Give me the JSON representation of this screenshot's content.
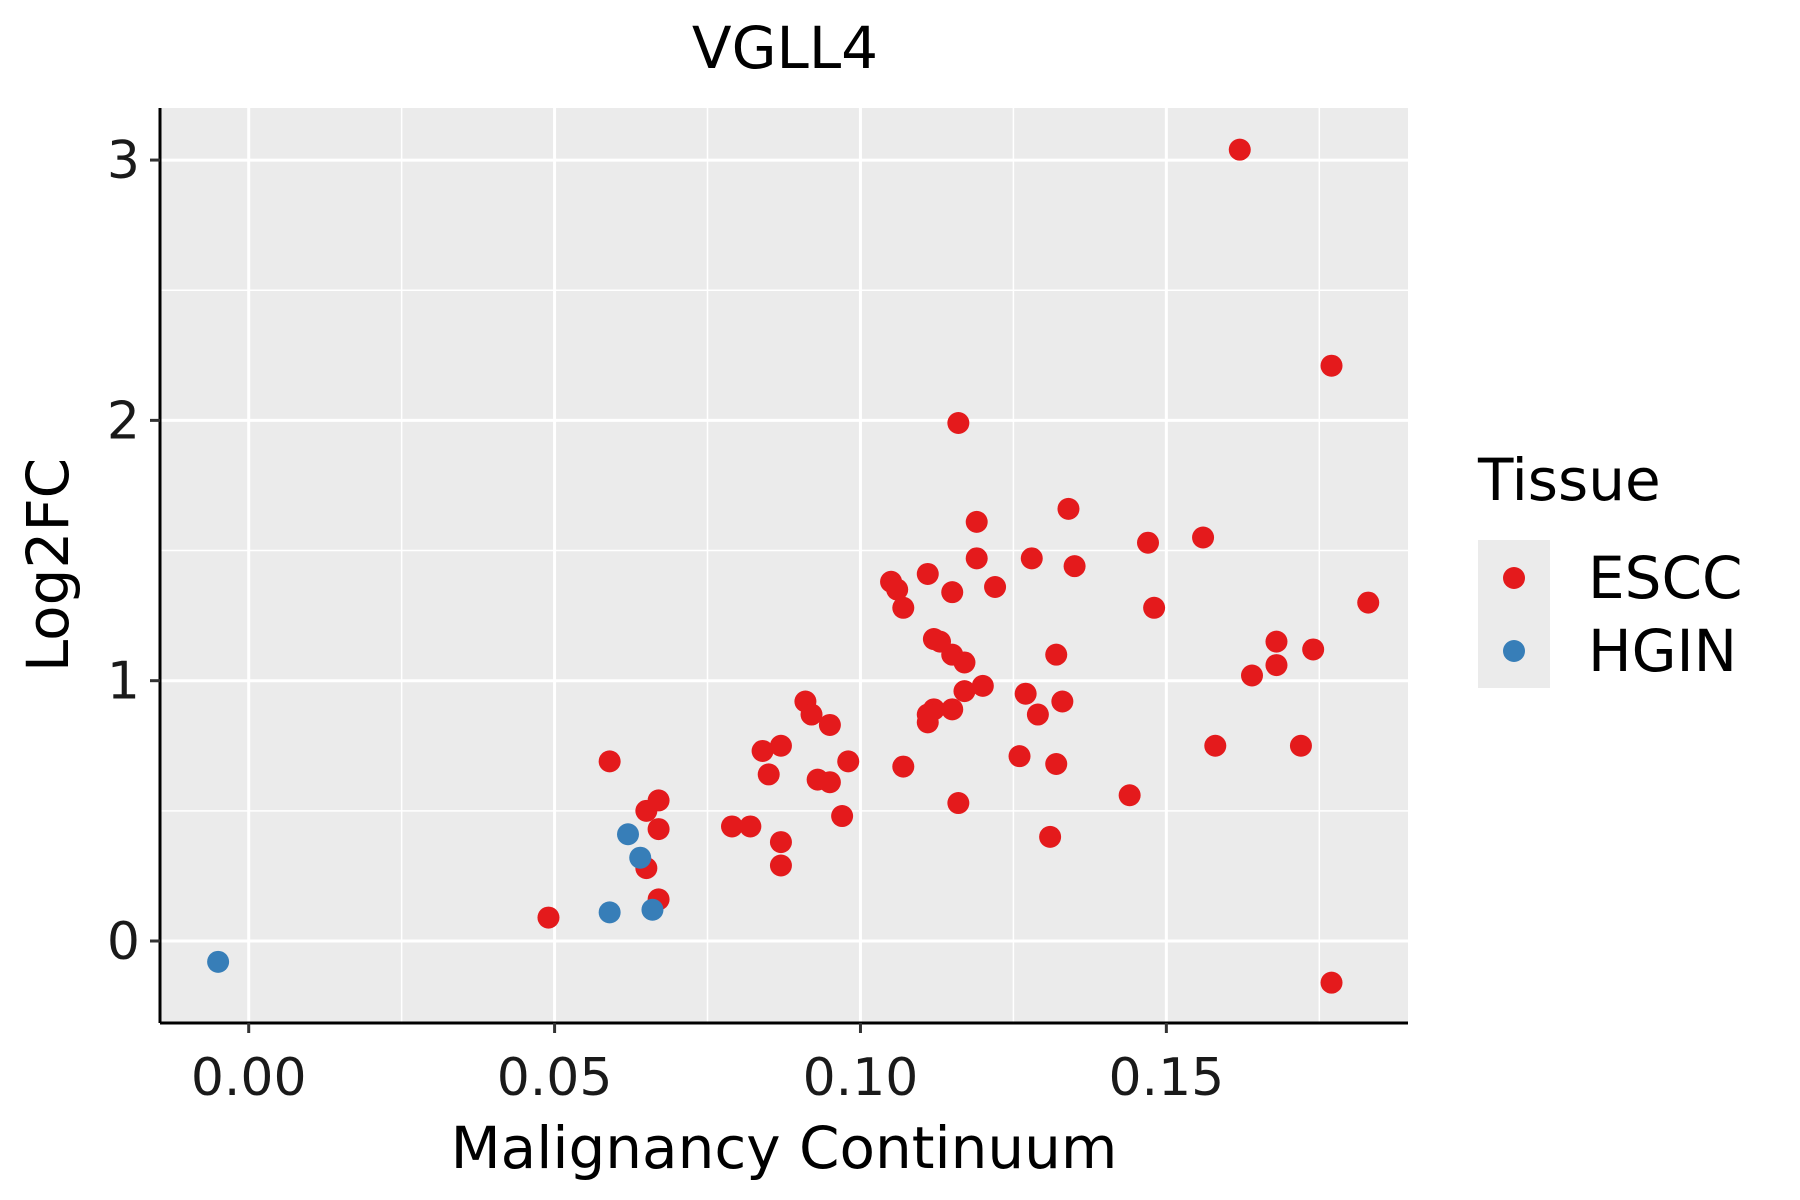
{
  "chart_data": {
    "type": "scatter",
    "title": "VGLL4",
    "xlabel": "Malignancy Continuum",
    "ylabel": "Log2FC",
    "xlim": [
      -0.0145,
      0.1895
    ],
    "ylim": [
      -0.315,
      3.2
    ],
    "x_ticks": [
      0.0,
      0.05,
      0.1,
      0.15
    ],
    "x_tick_labels": [
      "0.00",
      "0.05",
      "0.10",
      "0.15"
    ],
    "y_ticks": [
      0,
      1,
      2,
      3
    ],
    "y_tick_labels": [
      "0",
      "1",
      "2",
      "3"
    ],
    "grid": true,
    "legend": {
      "title": "Tissue",
      "position": "right"
    },
    "series": [
      {
        "name": "ESCC",
        "color": "#e41a1c",
        "points": [
          [
            0.162,
            3.04
          ],
          [
            0.177,
            2.21
          ],
          [
            0.116,
            1.99
          ],
          [
            0.134,
            1.66
          ],
          [
            0.119,
            1.61
          ],
          [
            0.156,
            1.55
          ],
          [
            0.147,
            1.53
          ],
          [
            0.119,
            1.47
          ],
          [
            0.128,
            1.47
          ],
          [
            0.135,
            1.44
          ],
          [
            0.111,
            1.41
          ],
          [
            0.105,
            1.38
          ],
          [
            0.106,
            1.35
          ],
          [
            0.122,
            1.36
          ],
          [
            0.115,
            1.34
          ],
          [
            0.148,
            1.28
          ],
          [
            0.107,
            1.28
          ],
          [
            0.183,
            1.3
          ],
          [
            0.112,
            1.16
          ],
          [
            0.113,
            1.15
          ],
          [
            0.168,
            1.15
          ],
          [
            0.115,
            1.1
          ],
          [
            0.132,
            1.1
          ],
          [
            0.174,
            1.12
          ],
          [
            0.117,
            1.07
          ],
          [
            0.168,
            1.06
          ],
          [
            0.164,
            1.02
          ],
          [
            0.12,
            0.98
          ],
          [
            0.117,
            0.96
          ],
          [
            0.127,
            0.95
          ],
          [
            0.091,
            0.92
          ],
          [
            0.133,
            0.92
          ],
          [
            0.115,
            0.89
          ],
          [
            0.112,
            0.89
          ],
          [
            0.111,
            0.87
          ],
          [
            0.092,
            0.87
          ],
          [
            0.129,
            0.87
          ],
          [
            0.111,
            0.84
          ],
          [
            0.095,
            0.83
          ],
          [
            0.087,
            0.75
          ],
          [
            0.084,
            0.73
          ],
          [
            0.158,
            0.75
          ],
          [
            0.172,
            0.75
          ],
          [
            0.126,
            0.71
          ],
          [
            0.059,
            0.69
          ],
          [
            0.098,
            0.69
          ],
          [
            0.132,
            0.68
          ],
          [
            0.107,
            0.67
          ],
          [
            0.085,
            0.64
          ],
          [
            0.093,
            0.62
          ],
          [
            0.095,
            0.61
          ],
          [
            0.144,
            0.56
          ],
          [
            0.067,
            0.54
          ],
          [
            0.116,
            0.53
          ],
          [
            0.065,
            0.5
          ],
          [
            0.097,
            0.48
          ],
          [
            0.079,
            0.44
          ],
          [
            0.082,
            0.44
          ],
          [
            0.067,
            0.43
          ],
          [
            0.131,
            0.4
          ],
          [
            0.087,
            0.38
          ],
          [
            0.087,
            0.29
          ],
          [
            0.065,
            0.28
          ],
          [
            0.067,
            0.16
          ],
          [
            0.049,
            0.09
          ],
          [
            0.177,
            -0.16
          ]
        ]
      },
      {
        "name": "HGIN",
        "color": "#377eb8",
        "points": [
          [
            0.062,
            0.41
          ],
          [
            0.064,
            0.32
          ],
          [
            0.059,
            0.11
          ],
          [
            0.066,
            0.12
          ],
          [
            -0.005,
            -0.08
          ]
        ]
      }
    ]
  }
}
